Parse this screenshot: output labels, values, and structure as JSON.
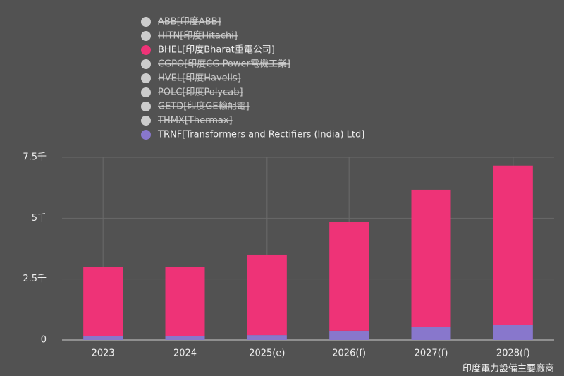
{
  "chart_data": {
    "type": "stacked_bar",
    "caption": "印度電力設備主要廠商",
    "categories": [
      "2023",
      "2024",
      "2025(e)",
      "2026(f)",
      "2027(f)",
      "2028(f)"
    ],
    "series": [
      {
        "name": "ABB[印度ABB]",
        "color": "#cccccc",
        "hidden": true,
        "values": [
          null,
          null,
          null,
          null,
          null,
          null
        ]
      },
      {
        "name": "HITN[印度Hitachi]",
        "color": "#cccccc",
        "hidden": true,
        "values": [
          null,
          null,
          null,
          null,
          null,
          null
        ]
      },
      {
        "name": "BHEL[印度Bharat重電公司]",
        "color": "#ee3377",
        "hidden": false,
        "values": [
          2840,
          2840,
          3305,
          4460,
          5620,
          6550
        ]
      },
      {
        "name": "CGPO[印度CG Power電機工業]",
        "color": "#cccccc",
        "hidden": true,
        "values": [
          null,
          null,
          null,
          null,
          null,
          null
        ]
      },
      {
        "name": "HVEL[印度Havells]",
        "color": "#cccccc",
        "hidden": true,
        "values": [
          null,
          null,
          null,
          null,
          null,
          null
        ]
      },
      {
        "name": "POLC[印度Polycab]",
        "color": "#cccccc",
        "hidden": true,
        "values": [
          null,
          null,
          null,
          null,
          null,
          null
        ]
      },
      {
        "name": "GETD[印度GE輸配電]",
        "color": "#cccccc",
        "hidden": true,
        "values": [
          null,
          null,
          null,
          null,
          null,
          null
        ]
      },
      {
        "name": "THMX[Thermax]",
        "color": "#cccccc",
        "hidden": true,
        "values": [
          null,
          null,
          null,
          null,
          null,
          null
        ]
      },
      {
        "name": "TRNF[Transformers and Rectifiers (India) Ltd]",
        "color": "#8877cc",
        "hidden": false,
        "values": [
          145,
          145,
          200,
          380,
          550,
          610
        ]
      }
    ],
    "stack_order": [
      8,
      0,
      1,
      2,
      3,
      4,
      5,
      6,
      7
    ],
    "ylim": [
      0,
      7500
    ],
    "yticks": [
      0,
      {
        "value": 2500,
        "label": "2.5千"
      },
      {
        "value": 5000,
        "label": "5千"
      },
      {
        "value": 7500,
        "label": "7.5千"
      }
    ],
    "grid": true
  }
}
